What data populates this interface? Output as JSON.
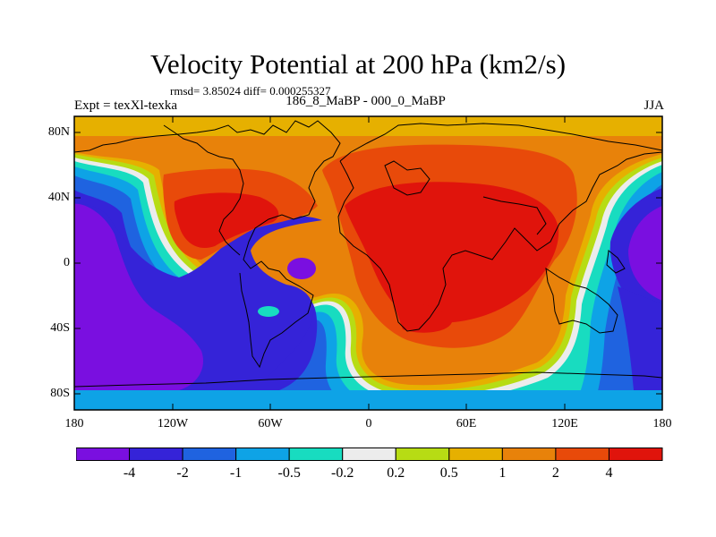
{
  "title": "Velocity Potential at 200 hPa (km2/s)",
  "stats": "rmsd= 3.85024 diff= 0.000255327",
  "left_label": "Expt = texXl-texka",
  "center_label": "186_8_MaBP - 000_0_MaBP",
  "right_label": "JJA",
  "lat_labels": [
    "80N",
    "40N",
    "0",
    "40S",
    "80S"
  ],
  "lon_labels": [
    "180",
    "120W",
    "60W",
    "0",
    "60E",
    "120E",
    "180"
  ],
  "colorbar": {
    "colors": [
      "#7a0fe0",
      "#3523d8",
      "#1f63e0",
      "#0ea3e6",
      "#18dcc0",
      "#ececec",
      "#b7dc14",
      "#e6b000",
      "#e8820a",
      "#e84a0a",
      "#e0140c"
    ],
    "labels": [
      "-4",
      "-2",
      "-1",
      "-0.5",
      "-0.2",
      "0.2",
      "0.5",
      "1",
      "2",
      "4"
    ]
  }
}
